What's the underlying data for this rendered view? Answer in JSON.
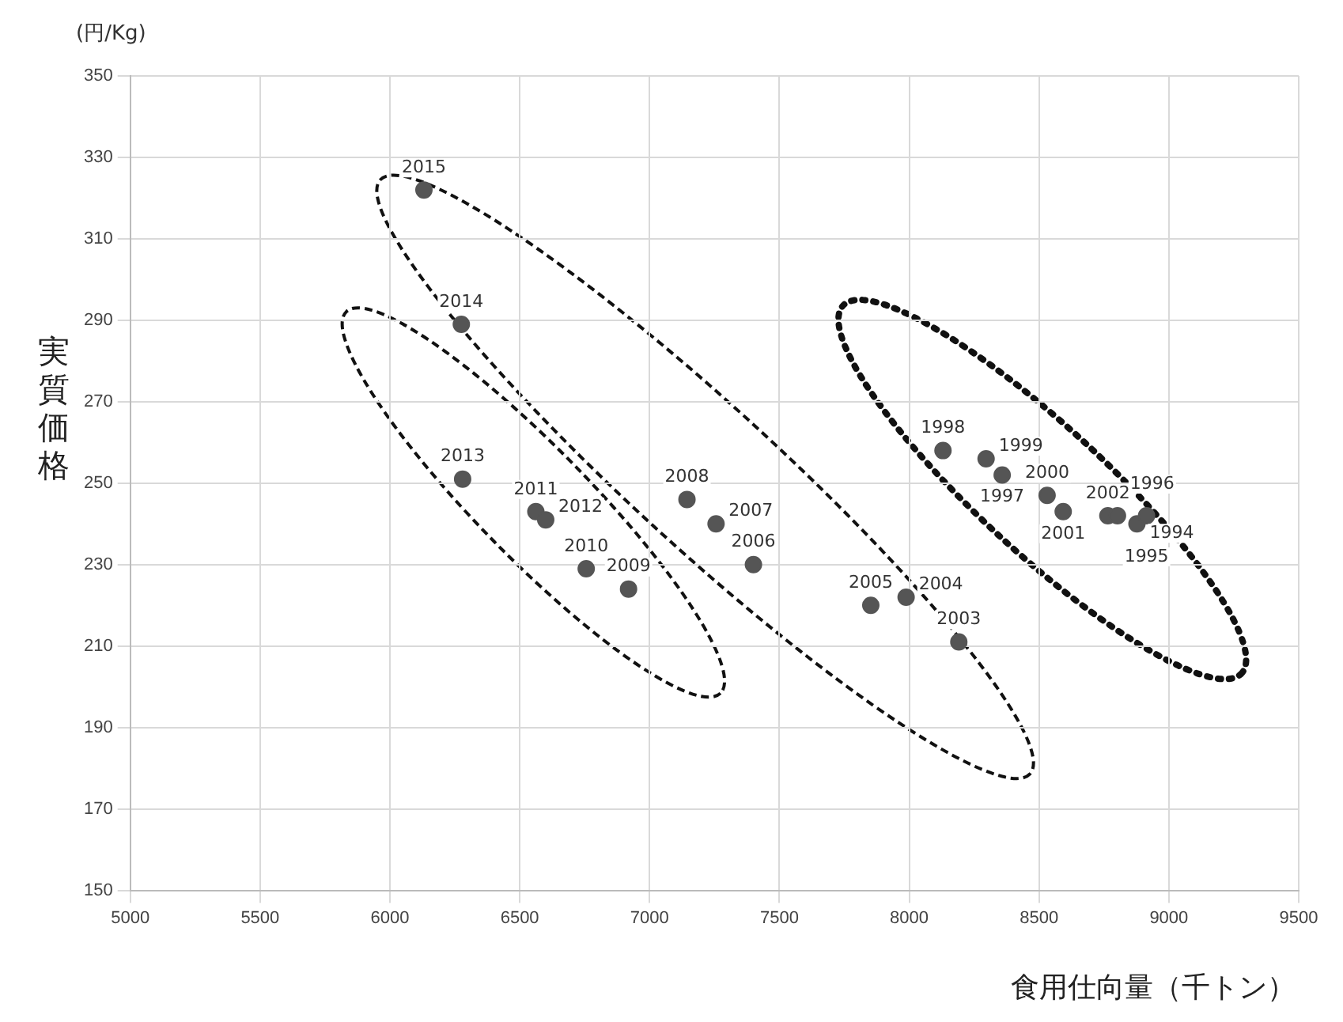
{
  "chart_data": {
    "type": "scatter",
    "ylabel": "実質価格",
    "xlabel": "食用仕向量（千トン）",
    "x": [
      6131,
      6275,
      6280,
      6562,
      6600,
      6756,
      6919,
      7144,
      7256,
      7400,
      7852,
      7988,
      8191,
      8130,
      8296,
      8358,
      8531,
      8593,
      8765,
      8802,
      8877,
      8914
    ],
    "values": [
      322,
      289,
      251,
      243,
      241,
      229,
      224,
      246,
      240,
      230,
      220,
      222,
      211,
      258,
      256,
      252,
      247,
      243,
      242,
      242,
      240,
      242
    ],
    "color": "#555555",
    "marker": "circle",
    "grid": true,
    "xlim": [
      5000,
      9500
    ],
    "xticks": [
      5000,
      5500,
      6000,
      6500,
      7000,
      7500,
      8000,
      8500,
      9000,
      9500
    ],
    "ylim": [
      150,
      350
    ],
    "yticks": [
      150,
      170,
      190,
      210,
      230,
      250,
      270,
      290,
      310,
      330,
      350
    ],
    "annotations": [
      "(円/Kg)",
      {
        "text": "2015",
        "x": 6131,
        "y": 322
      },
      {
        "text": "2014",
        "x": 6275,
        "y": 289
      },
      {
        "text": "2013",
        "x": 6280,
        "y": 251
      },
      {
        "text": "2011",
        "x": 6562,
        "y": 243
      },
      {
        "text": "2012",
        "x": 6600,
        "y": 241
      },
      {
        "text": "2010",
        "x": 6756,
        "y": 229
      },
      {
        "text": "2009",
        "x": 6919,
        "y": 224
      },
      {
        "text": "2008",
        "x": 7144,
        "y": 246
      },
      {
        "text": "2007",
        "x": 7256,
        "y": 240
      },
      {
        "text": "2006",
        "x": 7400,
        "y": 230
      },
      {
        "text": "2005",
        "x": 7852,
        "y": 220
      },
      {
        "text": "2004",
        "x": 7988,
        "y": 222
      },
      {
        "text": "2003",
        "x": 8191,
        "y": 211
      },
      {
        "text": "1998",
        "x": 8130,
        "y": 258
      },
      {
        "text": "1999",
        "x": 8296,
        "y": 256
      },
      {
        "text": "1997",
        "x": 8358,
        "y": 252
      },
      {
        "text": "2000",
        "x": 8531,
        "y": 247
      },
      {
        "text": "2001",
        "x": 8593,
        "y": 243
      },
      {
        "text": "2002",
        "x": 8765,
        "y": 242
      },
      {
        "text": "1996",
        "x": 8802,
        "y": 242
      },
      {
        "text": "1994",
        "x": 8877,
        "y": 240
      },
      {
        "text": "1995",
        "x": 8914,
        "y": 242
      }
    ]
  }
}
